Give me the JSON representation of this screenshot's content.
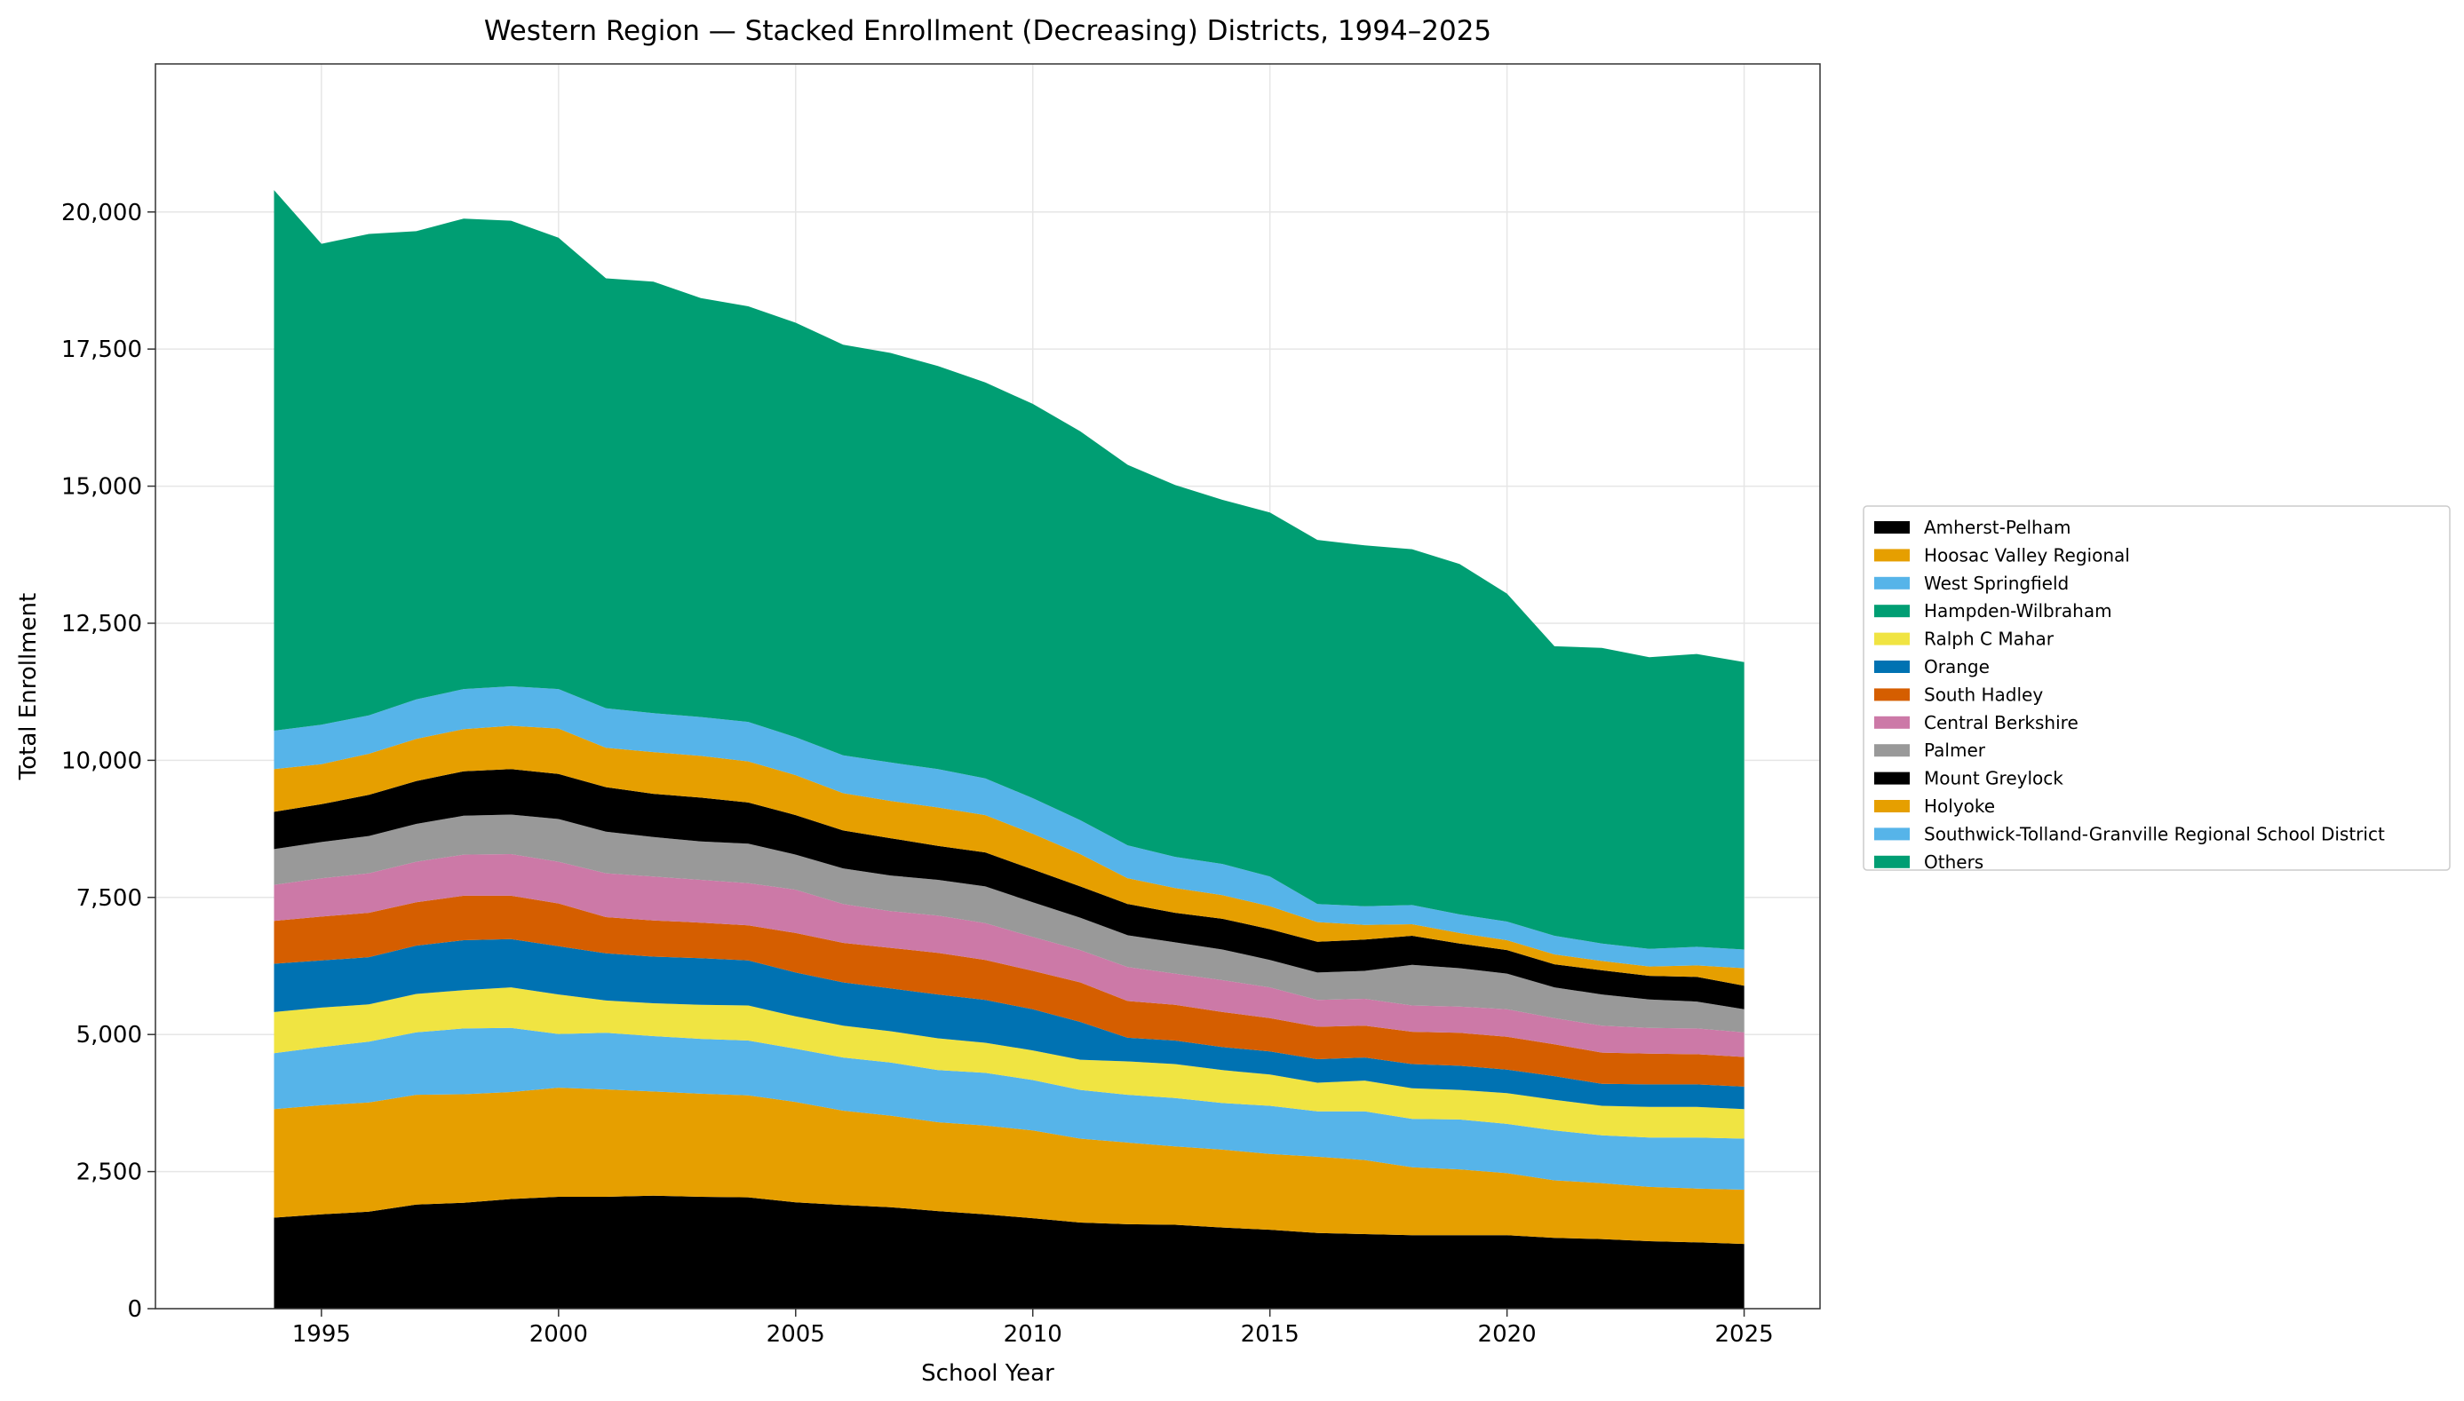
{
  "chart_data": {
    "type": "area",
    "stacked": true,
    "title": "Western Region — Stacked Enrollment (Decreasing) Districts, 1994–2025",
    "xlabel": "School Year",
    "ylabel": "Total Enrollment",
    "xlim": [
      1991.5,
      2026.6
    ],
    "ylim": [
      0,
      22700
    ],
    "xticks": [
      1995,
      2000,
      2005,
      2010,
      2015,
      2020,
      2025
    ],
    "xtick_labels": [
      "1995",
      "2000",
      "2005",
      "2010",
      "2015",
      "2020",
      "2025"
    ],
    "yticks": [
      0,
      2500,
      5000,
      7500,
      10000,
      12500,
      15000,
      17500,
      20000
    ],
    "ytick_labels": [
      "0",
      "2,500",
      "5,000",
      "7,500",
      "10,000",
      "12,500",
      "15,000",
      "17,500",
      "20,000"
    ],
    "grid": true,
    "legend_position": "right",
    "x": [
      1994,
      1995,
      1996,
      1997,
      1998,
      1999,
      2000,
      2001,
      2002,
      2003,
      2004,
      2005,
      2006,
      2007,
      2008,
      2009,
      2010,
      2011,
      2012,
      2013,
      2014,
      2015,
      2016,
      2017,
      2018,
      2019,
      2020,
      2021,
      2022,
      2023,
      2024,
      2025
    ],
    "series": [
      {
        "name": "Amherst-Pelham",
        "color": "#000000",
        "values": [
          1660,
          1720,
          1770,
          1900,
          1930,
          2000,
          2040,
          2040,
          2060,
          2040,
          2030,
          1940,
          1890,
          1850,
          1780,
          1720,
          1650,
          1570,
          1540,
          1530,
          1480,
          1440,
          1380,
          1360,
          1340,
          1340,
          1340,
          1290,
          1270,
          1230,
          1210,
          1180
        ]
      },
      {
        "name": "Hoosac Valley Regional",
        "color": "#E69F00",
        "values": [
          1980,
          1990,
          1990,
          2000,
          1980,
          1950,
          1990,
          1960,
          1900,
          1880,
          1860,
          1830,
          1720,
          1670,
          1620,
          1620,
          1600,
          1530,
          1490,
          1430,
          1420,
          1380,
          1390,
          1350,
          1240,
          1200,
          1130,
          1050,
          1020,
          990,
          980,
          990
        ]
      },
      {
        "name": "West Springfield",
        "color": "#56B4E9",
        "values": [
          1020,
          1060,
          1110,
          1140,
          1200,
          1170,
          980,
          1030,
          1010,
          1000,
          1000,
          970,
          970,
          970,
          950,
          960,
          920,
          890,
          870,
          880,
          850,
          880,
          830,
          890,
          880,
          910,
          900,
          910,
          870,
          900,
          930,
          930
        ]
      },
      {
        "name": "Hampden-Wilbraham",
        "color": "#009E73",
        "values": [
          0,
          0,
          0,
          0,
          0,
          0,
          0,
          0,
          0,
          0,
          0,
          0,
          0,
          0,
          0,
          0,
          0,
          0,
          0,
          0,
          0,
          0,
          0,
          0,
          0,
          0,
          0,
          0,
          0,
          0,
          0,
          0
        ]
      },
      {
        "name": "Ralph C Mahar",
        "color": "#F0E442",
        "values": [
          750,
          720,
          680,
          700,
          700,
          740,
          720,
          590,
          600,
          620,
          640,
          590,
          580,
          570,
          580,
          550,
          540,
          550,
          610,
          620,
          600,
          570,
          520,
          560,
          560,
          540,
          560,
          560,
          540,
          560,
          560,
          540
        ]
      },
      {
        "name": "Orange",
        "color": "#0072B2",
        "values": [
          880,
          860,
          860,
          880,
          910,
          880,
          880,
          860,
          850,
          850,
          820,
          800,
          790,
          780,
          800,
          780,
          750,
          690,
          430,
          430,
          420,
          420,
          430,
          420,
          440,
          440,
          430,
          430,
          400,
          410,
          410,
          410
        ]
      },
      {
        "name": "South Hadley",
        "color": "#D55E00",
        "values": [
          780,
          800,
          810,
          790,
          810,
          790,
          780,
          660,
          660,
          650,
          640,
          720,
          720,
          740,
          760,
          730,
          700,
          720,
          670,
          650,
          640,
          610,
          590,
          580,
          590,
          600,
          600,
          580,
          570,
          560,
          550,
          540
        ]
      },
      {
        "name": "Central Berkshire",
        "color": "#CC79A7",
        "values": [
          660,
          700,
          720,
          740,
          750,
          760,
          760,
          800,
          800,
          780,
          770,
          790,
          710,
          670,
          680,
          670,
          620,
          590,
          620,
          570,
          580,
          560,
          490,
          490,
          480,
          480,
          500,
          480,
          490,
          470,
          470,
          450
        ]
      },
      {
        "name": "Palmer",
        "color": "#999999",
        "values": [
          650,
          660,
          680,
          690,
          710,
          720,
          780,
          760,
          720,
          700,
          720,
          640,
          650,
          650,
          650,
          670,
          630,
          590,
          580,
          570,
          560,
          500,
          500,
          510,
          740,
          700,
          650,
          560,
          570,
          520,
          490,
          420
        ]
      },
      {
        "name": "Mount Greylock",
        "color": "#000000",
        "values": [
          680,
          690,
          750,
          780,
          810,
          830,
          820,
          810,
          790,
          800,
          750,
          720,
          690,
          680,
          620,
          620,
          600,
          570,
          570,
          540,
          560,
          560,
          560,
          570,
          530,
          450,
          430,
          420,
          440,
          430,
          450,
          430
        ]
      },
      {
        "name": "Holyoke",
        "color": "#E69F00",
        "values": [
          780,
          730,
          750,
          770,
          770,
          790,
          830,
          720,
          760,
          760,
          750,
          730,
          680,
          680,
          700,
          680,
          650,
          590,
          470,
          450,
          430,
          420,
          360,
          270,
          210,
          190,
          180,
          180,
          170,
          170,
          210,
          320
        ]
      },
      {
        "name": "Southwick-Tolland-Granville Regional School District",
        "color": "#56B4E9",
        "values": [
          700,
          720,
          700,
          720,
          730,
          720,
          720,
          720,
          710,
          710,
          720,
          690,
          690,
          700,
          700,
          670,
          650,
          620,
          600,
          570,
          570,
          540,
          330,
          340,
          350,
          340,
          340,
          340,
          320,
          320,
          340,
          340
        ]
      },
      {
        "name": "Others",
        "color": "#009E73",
        "values": [
          9860,
          8770,
          8780,
          8540,
          8580,
          8490,
          8230,
          7840,
          7870,
          7640,
          7580,
          7560,
          7490,
          7470,
          7350,
          7220,
          7190,
          7090,
          6940,
          6780,
          6640,
          6640,
          6640,
          6580,
          6490,
          6390,
          5980,
          5280,
          5390,
          5320,
          5340,
          5240
        ]
      }
    ]
  }
}
